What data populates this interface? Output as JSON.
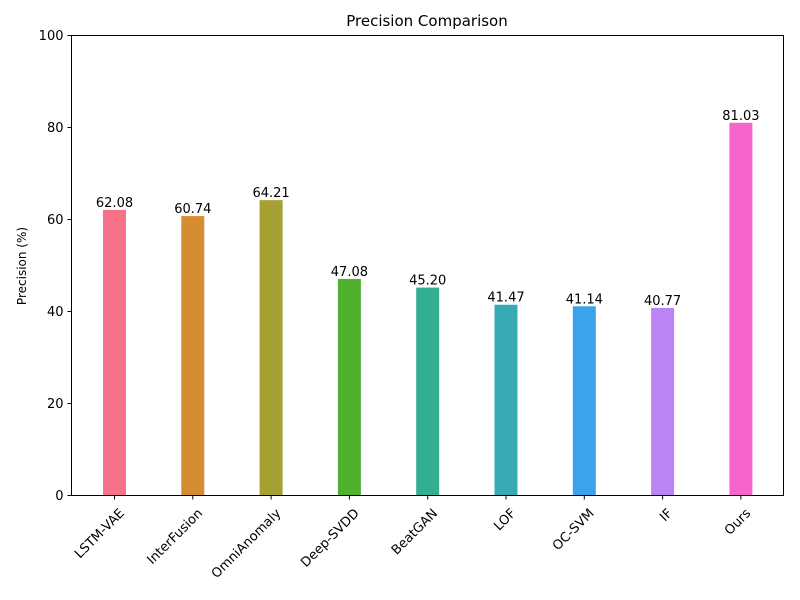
{
  "chart_data": {
    "type": "bar",
    "title": "Precision Comparison",
    "xlabel": "",
    "ylabel": "Precision (%)",
    "ylim": [
      0,
      100
    ],
    "yticks": [
      0,
      20,
      40,
      60,
      80,
      100
    ],
    "grid": false,
    "categories": [
      "LSTM-VAE",
      "InterFusion",
      "OmniAnomaly",
      "Deep-SVDD",
      "BeatGAN",
      "LOF",
      "OC-SVM",
      "IF",
      "Ours"
    ],
    "values": [
      62.08,
      60.74,
      64.21,
      47.08,
      45.2,
      41.47,
      41.14,
      40.77,
      81.03
    ],
    "value_labels": [
      "62.08",
      "60.74",
      "64.21",
      "47.08",
      "45.20",
      "41.47",
      "41.14",
      "40.77",
      "81.03"
    ],
    "colors": [
      "#f77189",
      "#d58c32",
      "#a4a031",
      "#50b131",
      "#34ae91",
      "#37abb5",
      "#3ba3ec",
      "#bb83f4",
      "#f565cc"
    ]
  }
}
